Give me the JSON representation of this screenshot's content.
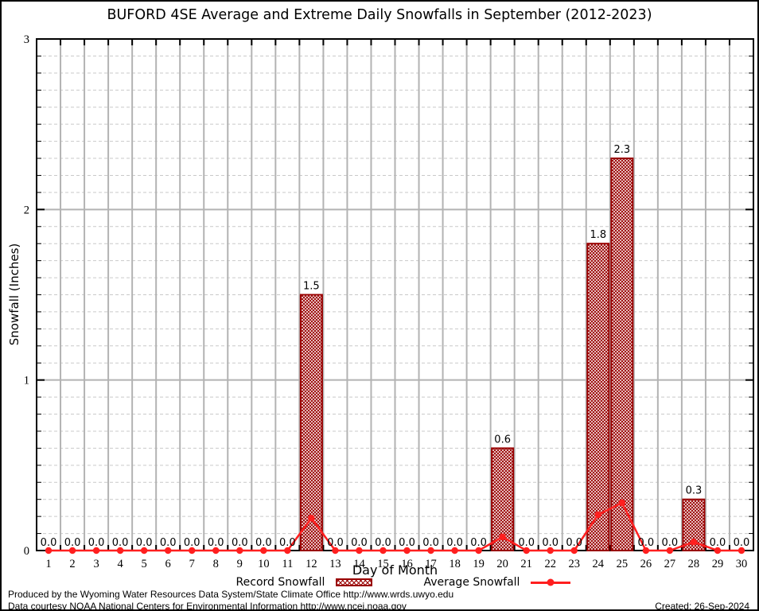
{
  "title": "BUFORD 4SE Average and Extreme Daily Snowfalls in September (2012-2023)",
  "axes": {
    "x_label": "Day of Month",
    "y_label": "Snowfall (Inches)"
  },
  "legend": {
    "record_label": "Record Snowfall",
    "average_label": "Average Snowfall"
  },
  "footer": {
    "line1": "Produced by the Wyoming Water Resources Data System/State Climate Office http://www.wrds.uwyo.edu",
    "line2": "Data courtesy NOAA National Centers for Environmental Information http://www.ncei.noaa.gov",
    "created": "Created: 26-Sep-2024"
  },
  "colors": {
    "bar": "#990000",
    "line": "#ff1f1f",
    "grid_major": "#b3b3b3",
    "grid_minor": "#c9c9c9",
    "frame": "#000000"
  },
  "chart_data": {
    "type": "bar",
    "title": "BUFORD 4SE Average and Extreme Daily Snowfalls in September (2012-2023)",
    "xlabel": "Day of Month",
    "ylabel": "Snowfall (Inches)",
    "x": [
      1,
      2,
      3,
      4,
      5,
      6,
      7,
      8,
      9,
      10,
      11,
      12,
      13,
      14,
      15,
      16,
      17,
      18,
      19,
      20,
      21,
      22,
      23,
      24,
      25,
      26,
      27,
      28,
      29,
      30
    ],
    "ylim": [
      0,
      3
    ],
    "y_major_ticks": [
      0,
      1,
      2,
      3
    ],
    "y_minor_step": 0.1,
    "grid": true,
    "legend_position": "bottom",
    "series": [
      {
        "name": "Record Snowfall",
        "type": "bar",
        "values": [
          0,
          0,
          0,
          0,
          0,
          0,
          0,
          0,
          0,
          0,
          0,
          1.5,
          0,
          0,
          0,
          0,
          0,
          0,
          0,
          0.6,
          0,
          0,
          0,
          1.8,
          2.3,
          0,
          0,
          0.3,
          0,
          0
        ],
        "value_labels": [
          "0.0",
          "0.0",
          "0.0",
          "0.0",
          "0.0",
          "0.0",
          "0.0",
          "0.0",
          "0.0",
          "0.0",
          "0.0",
          "1.5",
          "0.0",
          "0.0",
          "0.0",
          "0.0",
          "0.0",
          "0.0",
          "0.0",
          "0.6",
          "0.0",
          "0.0",
          "0.0",
          "1.8",
          "2.3",
          "0.0",
          "0.0",
          "0.3",
          "0.0",
          "0.0"
        ]
      },
      {
        "name": "Average Snowfall",
        "type": "line",
        "values": [
          0,
          0,
          0,
          0,
          0,
          0,
          0,
          0,
          0,
          0,
          0,
          0.19,
          0,
          0,
          0,
          0,
          0,
          0,
          0,
          0.08,
          0,
          0,
          0,
          0.21,
          0.28,
          0,
          0,
          0.05,
          0,
          0
        ]
      }
    ]
  }
}
